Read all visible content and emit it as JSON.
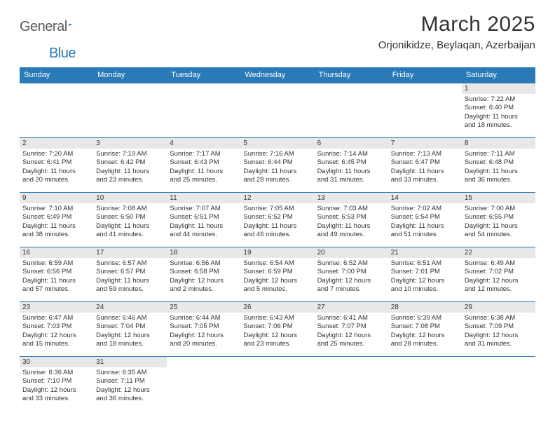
{
  "logo": {
    "part1": "General",
    "part2": "Blue"
  },
  "title": "March 2025",
  "location": "Orjonikidze, Beylaqan, Azerbaijan",
  "colors": {
    "header_bg": "#2a7ab8",
    "header_fg": "#ffffff",
    "daynum_bg": "#e8e8e8",
    "border": "#2a7ab8",
    "logo_gray": "#5a5a5a",
    "logo_blue": "#2a7ab8"
  },
  "weekdays": [
    "Sunday",
    "Monday",
    "Tuesday",
    "Wednesday",
    "Thursday",
    "Friday",
    "Saturday"
  ],
  "first_weekday_index": 6,
  "days_in_month": 31,
  "days": {
    "1": {
      "sunrise": "7:22 AM",
      "sunset": "6:40 PM",
      "dl_h": 11,
      "dl_m": 18
    },
    "2": {
      "sunrise": "7:20 AM",
      "sunset": "6:41 PM",
      "dl_h": 11,
      "dl_m": 20
    },
    "3": {
      "sunrise": "7:19 AM",
      "sunset": "6:42 PM",
      "dl_h": 11,
      "dl_m": 23
    },
    "4": {
      "sunrise": "7:17 AM",
      "sunset": "6:43 PM",
      "dl_h": 11,
      "dl_m": 25
    },
    "5": {
      "sunrise": "7:16 AM",
      "sunset": "6:44 PM",
      "dl_h": 11,
      "dl_m": 28
    },
    "6": {
      "sunrise": "7:14 AM",
      "sunset": "6:45 PM",
      "dl_h": 11,
      "dl_m": 31
    },
    "7": {
      "sunrise": "7:13 AM",
      "sunset": "6:47 PM",
      "dl_h": 11,
      "dl_m": 33
    },
    "8": {
      "sunrise": "7:11 AM",
      "sunset": "6:48 PM",
      "dl_h": 11,
      "dl_m": 36
    },
    "9": {
      "sunrise": "7:10 AM",
      "sunset": "6:49 PM",
      "dl_h": 11,
      "dl_m": 38
    },
    "10": {
      "sunrise": "7:08 AM",
      "sunset": "6:50 PM",
      "dl_h": 11,
      "dl_m": 41
    },
    "11": {
      "sunrise": "7:07 AM",
      "sunset": "6:51 PM",
      "dl_h": 11,
      "dl_m": 44
    },
    "12": {
      "sunrise": "7:05 AM",
      "sunset": "6:52 PM",
      "dl_h": 11,
      "dl_m": 46
    },
    "13": {
      "sunrise": "7:03 AM",
      "sunset": "6:53 PM",
      "dl_h": 11,
      "dl_m": 49
    },
    "14": {
      "sunrise": "7:02 AM",
      "sunset": "6:54 PM",
      "dl_h": 11,
      "dl_m": 51
    },
    "15": {
      "sunrise": "7:00 AM",
      "sunset": "6:55 PM",
      "dl_h": 11,
      "dl_m": 54
    },
    "16": {
      "sunrise": "6:59 AM",
      "sunset": "6:56 PM",
      "dl_h": 11,
      "dl_m": 57
    },
    "17": {
      "sunrise": "6:57 AM",
      "sunset": "6:57 PM",
      "dl_h": 11,
      "dl_m": 59
    },
    "18": {
      "sunrise": "6:56 AM",
      "sunset": "6:58 PM",
      "dl_h": 12,
      "dl_m": 2
    },
    "19": {
      "sunrise": "6:54 AM",
      "sunset": "6:59 PM",
      "dl_h": 12,
      "dl_m": 5
    },
    "20": {
      "sunrise": "6:52 AM",
      "sunset": "7:00 PM",
      "dl_h": 12,
      "dl_m": 7
    },
    "21": {
      "sunrise": "6:51 AM",
      "sunset": "7:01 PM",
      "dl_h": 12,
      "dl_m": 10
    },
    "22": {
      "sunrise": "6:49 AM",
      "sunset": "7:02 PM",
      "dl_h": 12,
      "dl_m": 12
    },
    "23": {
      "sunrise": "6:47 AM",
      "sunset": "7:03 PM",
      "dl_h": 12,
      "dl_m": 15
    },
    "24": {
      "sunrise": "6:46 AM",
      "sunset": "7:04 PM",
      "dl_h": 12,
      "dl_m": 18
    },
    "25": {
      "sunrise": "6:44 AM",
      "sunset": "7:05 PM",
      "dl_h": 12,
      "dl_m": 20
    },
    "26": {
      "sunrise": "6:43 AM",
      "sunset": "7:06 PM",
      "dl_h": 12,
      "dl_m": 23
    },
    "27": {
      "sunrise": "6:41 AM",
      "sunset": "7:07 PM",
      "dl_h": 12,
      "dl_m": 25
    },
    "28": {
      "sunrise": "6:39 AM",
      "sunset": "7:08 PM",
      "dl_h": 12,
      "dl_m": 28
    },
    "29": {
      "sunrise": "6:38 AM",
      "sunset": "7:09 PM",
      "dl_h": 12,
      "dl_m": 31
    },
    "30": {
      "sunrise": "6:36 AM",
      "sunset": "7:10 PM",
      "dl_h": 12,
      "dl_m": 33
    },
    "31": {
      "sunrise": "6:35 AM",
      "sunset": "7:11 PM",
      "dl_h": 12,
      "dl_m": 36
    }
  },
  "labels": {
    "sunrise": "Sunrise:",
    "sunset": "Sunset:",
    "daylight": "Daylight:",
    "hours": "hours",
    "and": "and",
    "minutes": "minutes."
  }
}
